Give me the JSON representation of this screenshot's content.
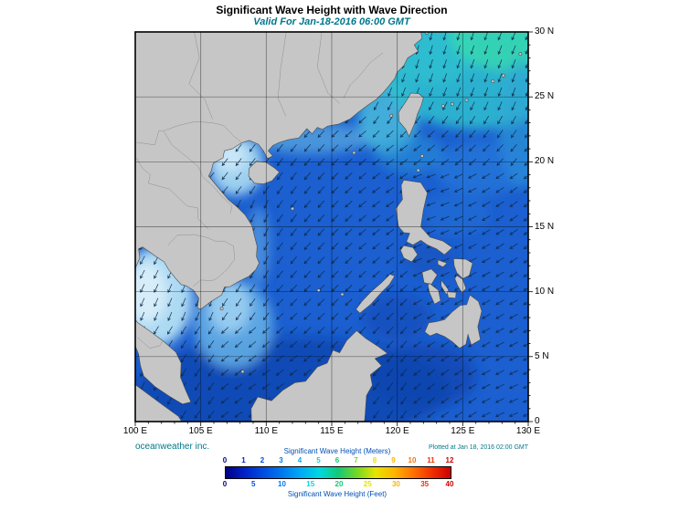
{
  "header": {
    "title": "Significant Wave Height with Wave Direction",
    "subtitle": "Valid For Jan-18-2016 06:00 GMT"
  },
  "map": {
    "lon_tick_labels": [
      "100 E",
      "105 E",
      "110 E",
      "115 E",
      "120 E",
      "125 E",
      "130 E"
    ],
    "lon_tick_values": [
      100,
      105,
      110,
      115,
      120,
      125,
      130
    ],
    "lat_tick_labels": [
      "30 N",
      "25 N",
      "20 N",
      "15 N",
      "10 N",
      "5 N",
      "0"
    ],
    "lat_tick_values": [
      30,
      25,
      20,
      15,
      10,
      5,
      0
    ]
  },
  "footer": {
    "credit": "oceanweather inc.",
    "plotted": "Plotted at Jan 18, 2016 02:00 GMT"
  },
  "colorbar": {
    "title_meters": "Significant Wave Height (Meters)",
    "title_feet": "Significant Wave Height (Feet)",
    "meters_ticks": [
      0,
      1,
      2,
      3,
      4,
      5,
      6,
      7,
      8,
      9,
      10,
      11,
      12
    ],
    "feet_ticks": [
      0,
      5,
      10,
      15,
      20,
      25,
      30,
      35,
      40
    ],
    "stop_colors": [
      "#000082",
      "#0022c8",
      "#004ce0",
      "#0078ee",
      "#00aaf6",
      "#00d8e0",
      "#14c878",
      "#74d826",
      "#e8e400",
      "#ffb400",
      "#ff7200",
      "#f03000",
      "#cc0000"
    ]
  },
  "palette": {
    "accent_teal": "#00788c",
    "label_blue": "#0050b8",
    "land_gray": "#c6c6c6",
    "ocean_blue": "#1b5fd0"
  },
  "chart_data": {
    "type": "heatmap",
    "title": "Significant Wave Height with Wave Direction",
    "valid_time": "Jan-18-2016 06:00 GMT",
    "plotted_time": "Jan 18, 2016 02:00 GMT",
    "x_axis": {
      "unit": "degrees East",
      "range": [
        100,
        130
      ],
      "ticks": [
        100,
        105,
        110,
        115,
        120,
        125,
        130
      ]
    },
    "y_axis": {
      "unit": "degrees North",
      "range": [
        0,
        30
      ],
      "ticks": [
        0,
        5,
        10,
        15,
        20,
        25,
        30
      ]
    },
    "color_scale": {
      "meters": [
        0,
        1,
        2,
        3,
        4,
        5,
        6,
        7,
        8,
        9,
        10,
        11,
        12
      ],
      "feet": [
        0,
        5,
        10,
        15,
        20,
        25,
        30,
        35,
        40
      ]
    }
  }
}
